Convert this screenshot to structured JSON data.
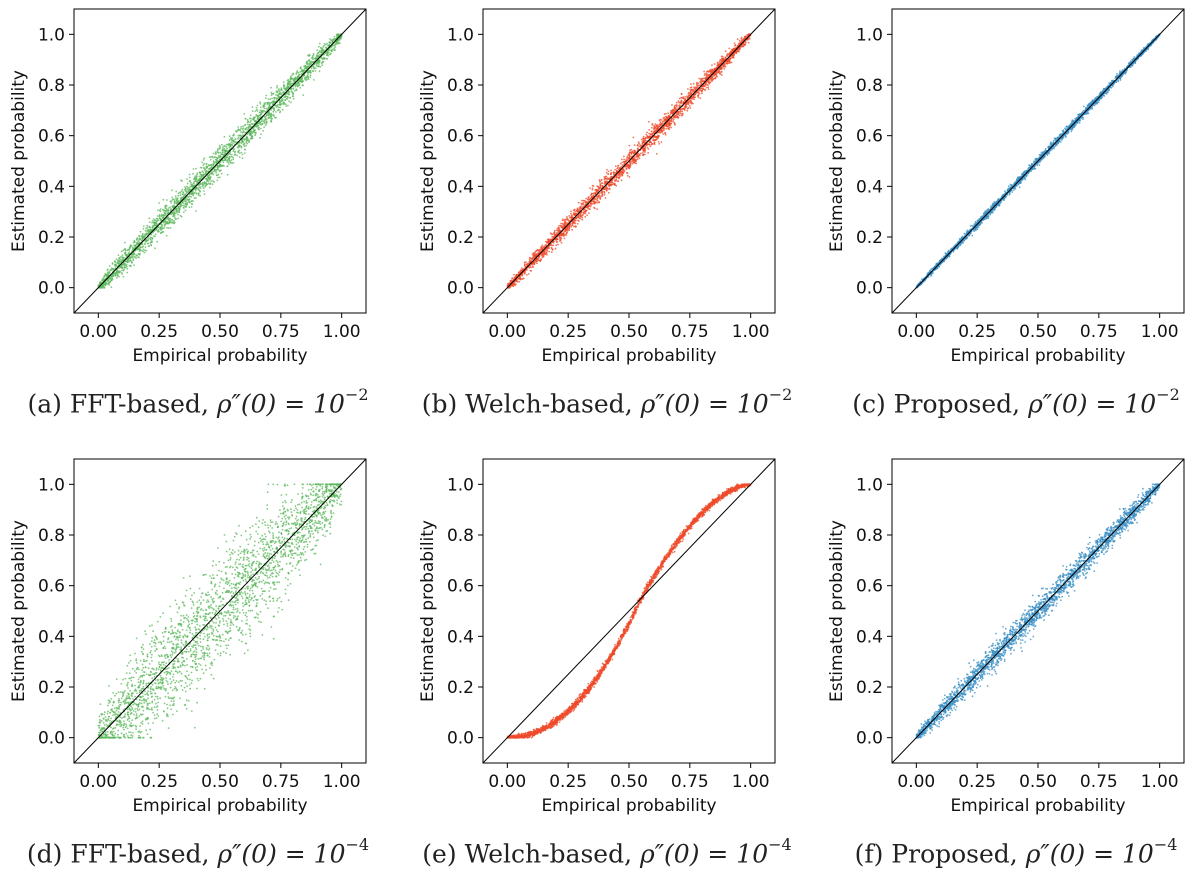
{
  "chart_data": [
    {
      "type": "scatter",
      "caption": {
        "tag": "(a)",
        "method": "FFT-based,",
        "lhs": "ρ″(0) = 10",
        "exp": "−2"
      },
      "xlabel": "Empirical probability",
      "ylabel": "Estimated probability",
      "xlim": [
        -0.1,
        1.1
      ],
      "ylim": [
        -0.1,
        1.1
      ],
      "xticks": [
        "0.00",
        "0.25",
        "0.50",
        "0.75",
        "1.00"
      ],
      "yticks": [
        "0.0",
        "0.2",
        "0.4",
        "0.6",
        "0.8",
        "1.0"
      ],
      "reference_line": [
        [
          -0.1,
          -0.1
        ],
        [
          1.1,
          1.1
        ]
      ],
      "color": "#5cb85c",
      "spread": 0.018,
      "shape": "identity"
    },
    {
      "type": "scatter",
      "caption": {
        "tag": "(b)",
        "method": "Welch-based,",
        "lhs": "ρ″(0) = 10",
        "exp": "−2"
      },
      "xlabel": "Empirical probability",
      "ylabel": "Estimated probability",
      "xlim": [
        -0.1,
        1.1
      ],
      "ylim": [
        -0.1,
        1.1
      ],
      "xticks": [
        "0.00",
        "0.25",
        "0.50",
        "0.75",
        "1.00"
      ],
      "yticks": [
        "0.0",
        "0.2",
        "0.4",
        "0.6",
        "0.8",
        "1.0"
      ],
      "reference_line": [
        [
          -0.1,
          -0.1
        ],
        [
          1.1,
          1.1
        ]
      ],
      "color": "#ee4b2b",
      "spread": 0.012,
      "shape": "identity"
    },
    {
      "type": "scatter",
      "caption": {
        "tag": "(c)",
        "method": "Proposed,",
        "lhs": "ρ″(0) = 10",
        "exp": "−2"
      },
      "xlabel": "Empirical probability",
      "ylabel": "Estimated probability",
      "xlim": [
        -0.1,
        1.1
      ],
      "ylim": [
        -0.1,
        1.1
      ],
      "xticks": [
        "0.00",
        "0.25",
        "0.50",
        "0.75",
        "1.00"
      ],
      "yticks": [
        "0.0",
        "0.2",
        "0.4",
        "0.6",
        "0.8",
        "1.0"
      ],
      "reference_line": [
        [
          -0.1,
          -0.1
        ],
        [
          1.1,
          1.1
        ]
      ],
      "color": "#3a8fc4",
      "spread": 0.005,
      "shape": "identity"
    },
    {
      "type": "scatter",
      "caption": {
        "tag": "(d)",
        "method": "FFT-based,",
        "lhs": "ρ″(0) = 10",
        "exp": "−4"
      },
      "xlabel": "Empirical probability",
      "ylabel": "Estimated probability",
      "xlim": [
        -0.1,
        1.1
      ],
      "ylim": [
        -0.1,
        1.1
      ],
      "xticks": [
        "0.00",
        "0.25",
        "0.50",
        "0.75",
        "1.00"
      ],
      "yticks": [
        "0.0",
        "0.2",
        "0.4",
        "0.6",
        "0.8",
        "1.0"
      ],
      "reference_line": [
        [
          -0.1,
          -0.1
        ],
        [
          1.1,
          1.1
        ]
      ],
      "color": "#5cb85c",
      "spread": 0.07,
      "shape": "identity"
    },
    {
      "type": "scatter",
      "caption": {
        "tag": "(e)",
        "method": "Welch-based,",
        "lhs": "ρ″(0) = 10",
        "exp": "−4"
      },
      "xlabel": "Empirical probability",
      "ylabel": "Estimated probability",
      "xlim": [
        -0.1,
        1.1
      ],
      "ylim": [
        -0.1,
        1.1
      ],
      "xticks": [
        "0.00",
        "0.25",
        "0.50",
        "0.75",
        "1.00"
      ],
      "yticks": [
        "0.0",
        "0.2",
        "0.4",
        "0.6",
        "0.8",
        "1.0"
      ],
      "reference_line": [
        [
          -0.1,
          -0.1
        ],
        [
          1.1,
          1.1
        ]
      ],
      "color": "#ee4b2b",
      "spread": 0.006,
      "shape": "sigmoid"
    },
    {
      "type": "scatter",
      "caption": {
        "tag": "(f)",
        "method": "Proposed,",
        "lhs": "ρ″(0) = 10",
        "exp": "−4"
      },
      "xlabel": "Empirical probability",
      "ylabel": "Estimated probability",
      "xlim": [
        -0.1,
        1.1
      ],
      "ylim": [
        -0.1,
        1.1
      ],
      "xticks": [
        "0.00",
        "0.25",
        "0.50",
        "0.75",
        "1.00"
      ],
      "yticks": [
        "0.0",
        "0.2",
        "0.4",
        "0.6",
        "0.8",
        "1.0"
      ],
      "reference_line": [
        [
          -0.1,
          -0.1
        ],
        [
          1.1,
          1.1
        ]
      ],
      "color": "#3a8fc4",
      "spread": 0.016,
      "shape": "identity"
    }
  ]
}
